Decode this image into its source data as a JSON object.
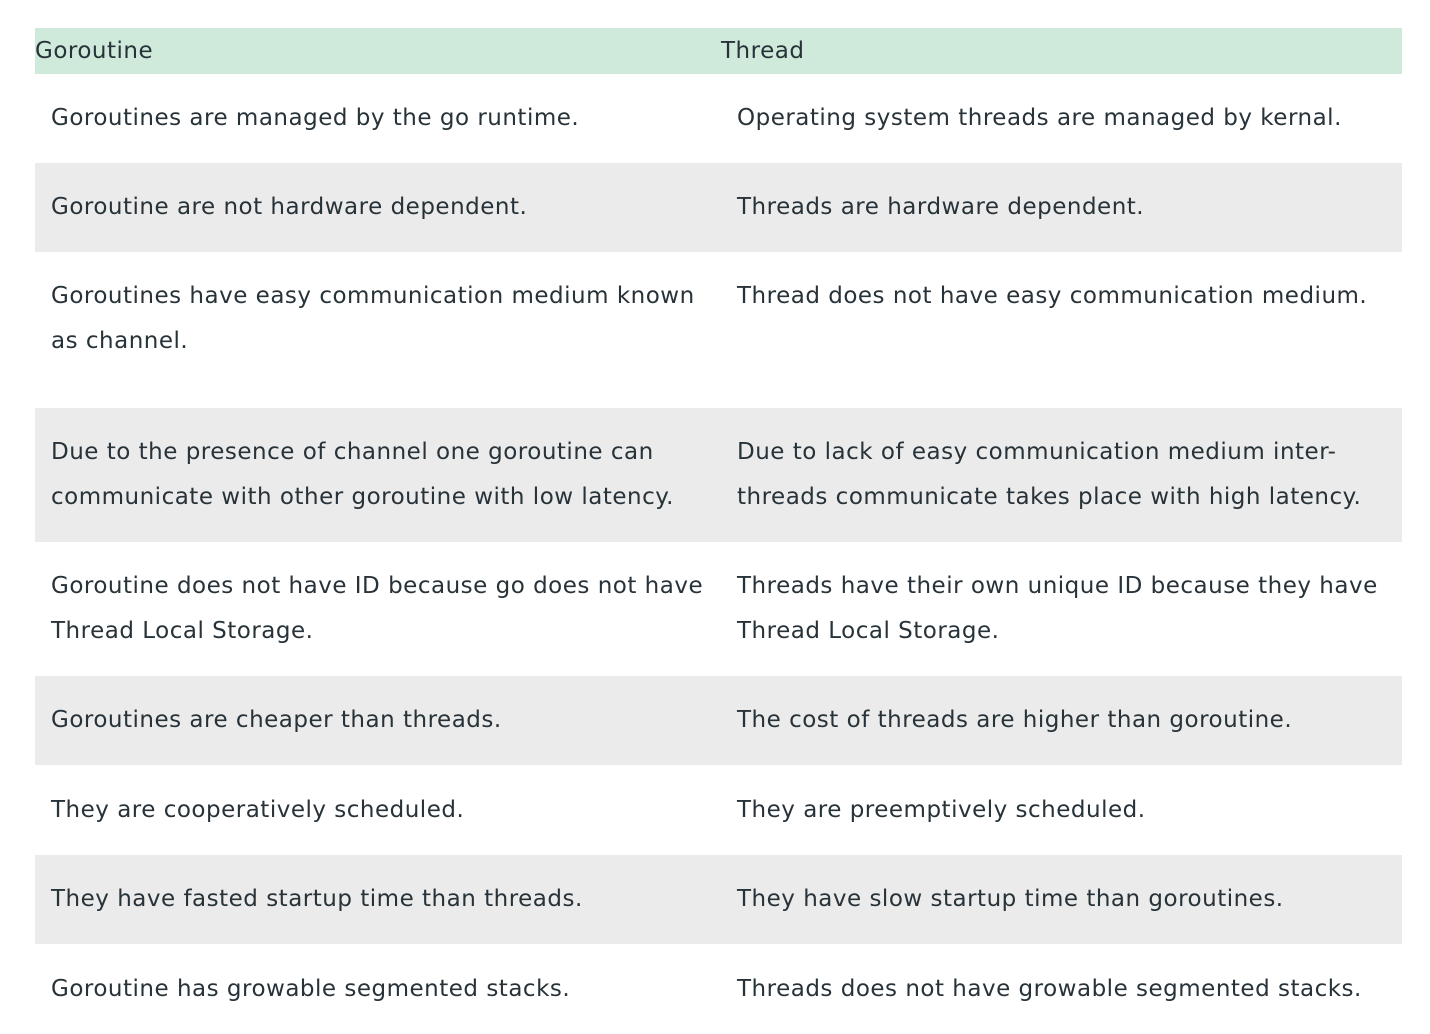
{
  "table": {
    "headers": [
      "Goroutine",
      "Thread"
    ],
    "rows": [
      [
        "Goroutines are managed by the go runtime.",
        "Operating system threads are managed by kernal."
      ],
      [
        "Goroutine are not hardware dependent.",
        "Threads are hardware dependent."
      ],
      [
        "Goroutines have easy communication medium known as channel.",
        "Thread does not have easy communication medium."
      ],
      [
        "Due to the presence of channel one goroutine can communicate with other goroutine with low latency.",
        "Due to lack of easy communication medium inter-threads communicate takes place with high latency."
      ],
      [
        "Goroutine does not have ID because go does not have Thread Local Storage.",
        "Threads have their own unique ID because they have Thread Local Storage."
      ],
      [
        "Goroutines are cheaper than threads.",
        "The cost of threads are higher than goroutine."
      ],
      [
        "They are cooperatively scheduled.",
        "They are preemptively scheduled."
      ],
      [
        "They have fasted startup time than threads.",
        "They have slow startup time than goroutines."
      ],
      [
        "Goroutine has growable segmented stacks.",
        "Threads does not have growable segmented stacks."
      ]
    ]
  }
}
